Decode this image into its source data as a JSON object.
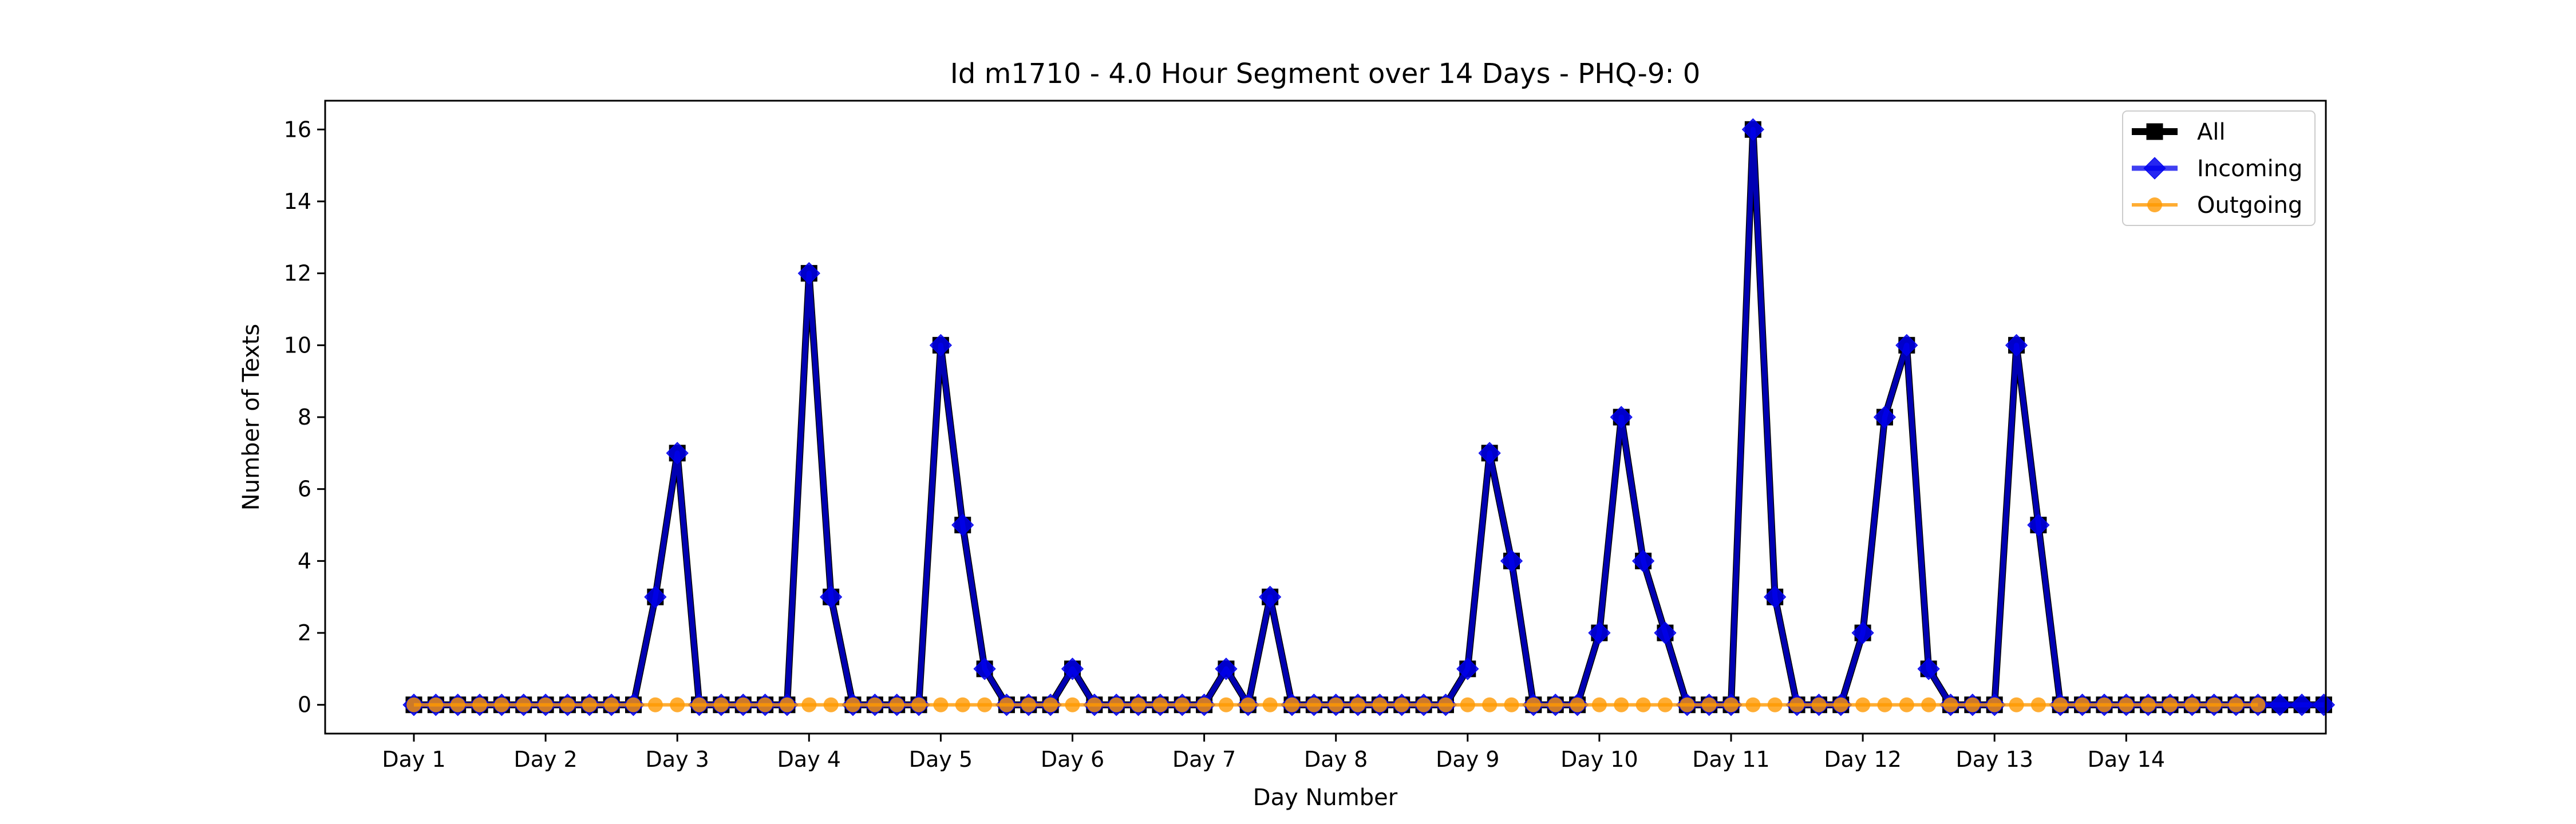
{
  "chart_data": {
    "type": "line",
    "title": "Id m1710 - 4.0 Hour Segment over 14 Days - PHQ-9: 0",
    "xlabel": "Day Number",
    "ylabel": "Number of Texts",
    "ylim": [
      -0.8,
      16.8
    ],
    "y_ticks": [
      0,
      2,
      4,
      6,
      8,
      10,
      12,
      14,
      16
    ],
    "x_ticks": [
      "Day 1",
      "Day 2",
      "Day 3",
      "Day 4",
      "Day 5",
      "Day 6",
      "Day 7",
      "Day 8",
      "Day 9",
      "Day 10",
      "Day 11",
      "Day 12",
      "Day 13",
      "Day 14"
    ],
    "legend_position": "top-right",
    "grid": false,
    "series": [
      {
        "name": "All",
        "color": "#000000",
        "marker": "square",
        "values": [
          0,
          0,
          0,
          0,
          0,
          0,
          0,
          0,
          0,
          0,
          0,
          3,
          7,
          0,
          0,
          0,
          0,
          0,
          12,
          3,
          0,
          0,
          0,
          0,
          10,
          5,
          1,
          0,
          0,
          0,
          1,
          0,
          0,
          0,
          0,
          0,
          0,
          1,
          0,
          3,
          0,
          0,
          0,
          0,
          0,
          0,
          0,
          0,
          1,
          7,
          4,
          0,
          0,
          0,
          2,
          8,
          4,
          2,
          0,
          0,
          0,
          16,
          3,
          0,
          0,
          0,
          2,
          8,
          10,
          1,
          0,
          0,
          0,
          10,
          5,
          0,
          0,
          0,
          0,
          0,
          0,
          0,
          0,
          0,
          0,
          0,
          0,
          0
        ]
      },
      {
        "name": "Incoming",
        "color": "#0000ee",
        "marker": "diamond",
        "values": [
          0,
          0,
          0,
          0,
          0,
          0,
          0,
          0,
          0,
          0,
          0,
          3,
          7,
          0,
          0,
          0,
          0,
          0,
          12,
          3,
          0,
          0,
          0,
          0,
          10,
          5,
          1,
          0,
          0,
          0,
          1,
          0,
          0,
          0,
          0,
          0,
          0,
          1,
          0,
          3,
          0,
          0,
          0,
          0,
          0,
          0,
          0,
          0,
          1,
          7,
          4,
          0,
          0,
          0,
          2,
          8,
          4,
          2,
          0,
          0,
          0,
          16,
          3,
          0,
          0,
          0,
          2,
          8,
          10,
          1,
          0,
          0,
          0,
          10,
          5,
          0,
          0,
          0,
          0,
          0,
          0,
          0,
          0,
          0,
          0,
          0,
          0,
          0
        ]
      },
      {
        "name": "Outgoing",
        "color": "#ff9900",
        "marker": "circle",
        "values": [
          0,
          0,
          0,
          0,
          0,
          0,
          0,
          0,
          0,
          0,
          0,
          0,
          0,
          0,
          0,
          0,
          0,
          0,
          0,
          0,
          0,
          0,
          0,
          0,
          0,
          0,
          0,
          0,
          0,
          0,
          0,
          0,
          0,
          0,
          0,
          0,
          0,
          0,
          0,
          0,
          0,
          0,
          0,
          0,
          0,
          0,
          0,
          0,
          0,
          0,
          0,
          0,
          0,
          0,
          0,
          0,
          0,
          0,
          0,
          0,
          0,
          0,
          0,
          0,
          0,
          0,
          0,
          0,
          0,
          0,
          0,
          0,
          0,
          0,
          0,
          0,
          0,
          0,
          0,
          0,
          0,
          0,
          0,
          0,
          0
        ]
      }
    ]
  }
}
